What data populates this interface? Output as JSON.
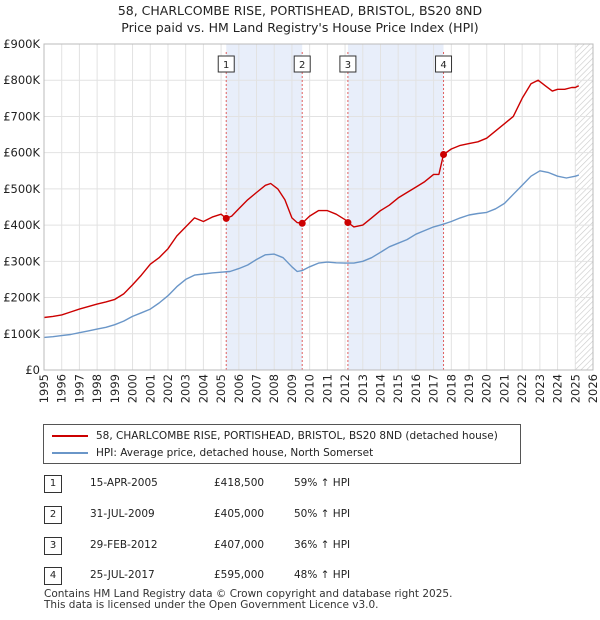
{
  "header": {
    "line1": "58, CHARLCOMBE RISE, PORTISHEAD, BRISTOL, BS20 8ND",
    "line2": "Price paid vs. HM Land Registry's House Price Index (HPI)"
  },
  "chart_data": {
    "type": "line",
    "title": "58, CHARLCOMBE RISE, PORTISHEAD, BRISTOL, BS20 8ND — Price paid vs. HM Land Registry's House Price Index (HPI)",
    "xlim": [
      1995,
      2026
    ],
    "ylim": [
      0,
      900000
    ],
    "x_ticks": [
      "1995",
      "1996",
      "1997",
      "1998",
      "1999",
      "2000",
      "2001",
      "2002",
      "2003",
      "2004",
      "2005",
      "2006",
      "2007",
      "2008",
      "2009",
      "2010",
      "2011",
      "2012",
      "2013",
      "2014",
      "2015",
      "2016",
      "2017",
      "2018",
      "2019",
      "2020",
      "2021",
      "2022",
      "2023",
      "2024",
      "2025",
      "2026"
    ],
    "y_ticks": [
      {
        "value": 0,
        "label": "£0"
      },
      {
        "value": 100000,
        "label": "£100K"
      },
      {
        "value": 200000,
        "label": "£200K"
      },
      {
        "value": 300000,
        "label": "£300K"
      },
      {
        "value": 400000,
        "label": "£400K"
      },
      {
        "value": 500000,
        "label": "£500K"
      },
      {
        "value": 600000,
        "label": "£600K"
      },
      {
        "value": 700000,
        "label": "£700K"
      },
      {
        "value": 800000,
        "label": "£800K"
      },
      {
        "value": 900000,
        "label": "£900K"
      }
    ],
    "shaded_periods": [
      [
        2005.29,
        2009.58
      ],
      [
        2012.16,
        2017.56
      ]
    ],
    "future_from": 2025.0,
    "series": [
      {
        "name": "58, CHARLCOMBE RISE, PORTISHEAD, BRISTOL, BS20 8ND (detached house)",
        "color": "#cc0000",
        "x": [
          1995.0,
          1995.5,
          1996.0,
          1996.5,
          1997.0,
          1997.5,
          1998.0,
          1998.5,
          1999.0,
          1999.5,
          2000.0,
          2000.5,
          2001.0,
          2001.5,
          2002.0,
          2002.5,
          2003.0,
          2003.5,
          2004.0,
          2004.5,
          2005.0,
          2005.29,
          2005.6,
          2006.0,
          2006.5,
          2007.0,
          2007.5,
          2007.8,
          2008.2,
          2008.6,
          2009.0,
          2009.3,
          2009.58,
          2010.0,
          2010.5,
          2011.0,
          2011.5,
          2012.0,
          2012.16,
          2012.5,
          2013.0,
          2013.5,
          2014.0,
          2014.5,
          2015.0,
          2015.5,
          2016.0,
          2016.5,
          2017.0,
          2017.3,
          2017.56,
          2018.0,
          2018.5,
          2019.0,
          2019.5,
          2020.0,
          2020.5,
          2021.0,
          2021.5,
          2022.0,
          2022.5,
          2022.9,
          2023.3,
          2023.7,
          2024.0,
          2024.4,
          2024.8,
          2025.0,
          2025.2
        ],
        "values": [
          145000,
          148000,
          152000,
          160000,
          168000,
          175000,
          182000,
          188000,
          195000,
          210000,
          235000,
          262000,
          292000,
          310000,
          335000,
          370000,
          395000,
          420000,
          410000,
          422000,
          430000,
          418500,
          425000,
          445000,
          470000,
          490000,
          510000,
          515000,
          500000,
          470000,
          420000,
          407000,
          405000,
          425000,
          440000,
          440000,
          430000,
          415000,
          407000,
          395000,
          400000,
          420000,
          440000,
          455000,
          475000,
          490000,
          505000,
          520000,
          540000,
          540000,
          595000,
          610000,
          620000,
          625000,
          630000,
          640000,
          660000,
          680000,
          700000,
          750000,
          790000,
          800000,
          785000,
          770000,
          775000,
          775000,
          780000,
          780000,
          785000
        ]
      },
      {
        "name": "HPI: Average price, detached house, North Somerset",
        "color": "#6a96c8",
        "x": [
          1995.0,
          1995.5,
          1996.0,
          1996.5,
          1997.0,
          1997.5,
          1998.0,
          1998.5,
          1999.0,
          1999.5,
          2000.0,
          2000.5,
          2001.0,
          2001.5,
          2002.0,
          2002.5,
          2003.0,
          2003.5,
          2004.0,
          2004.5,
          2005.0,
          2005.5,
          2006.0,
          2006.5,
          2007.0,
          2007.5,
          2008.0,
          2008.5,
          2009.0,
          2009.3,
          2009.6,
          2010.0,
          2010.5,
          2011.0,
          2011.5,
          2012.0,
          2012.5,
          2013.0,
          2013.5,
          2014.0,
          2014.5,
          2015.0,
          2015.5,
          2016.0,
          2016.5,
          2017.0,
          2017.5,
          2018.0,
          2018.5,
          2019.0,
          2019.5,
          2020.0,
          2020.5,
          2021.0,
          2021.5,
          2022.0,
          2022.5,
          2023.0,
          2023.5,
          2024.0,
          2024.5,
          2025.0,
          2025.2
        ],
        "values": [
          90000,
          92000,
          95000,
          98000,
          103000,
          108000,
          113000,
          118000,
          125000,
          135000,
          148000,
          158000,
          168000,
          185000,
          205000,
          230000,
          250000,
          262000,
          265000,
          268000,
          270000,
          272000,
          280000,
          290000,
          305000,
          318000,
          320000,
          310000,
          285000,
          272000,
          275000,
          285000,
          295000,
          298000,
          296000,
          295000,
          295000,
          300000,
          310000,
          325000,
          340000,
          350000,
          360000,
          375000,
          385000,
          395000,
          402000,
          410000,
          420000,
          428000,
          432000,
          435000,
          445000,
          460000,
          485000,
          510000,
          535000,
          550000,
          545000,
          535000,
          530000,
          535000,
          538000
        ]
      }
    ],
    "sales": [
      {
        "id": "1",
        "x": 2005.29,
        "value": 418500
      },
      {
        "id": "2",
        "x": 2009.58,
        "value": 405000
      },
      {
        "id": "3",
        "x": 2012.16,
        "value": 407000
      },
      {
        "id": "4",
        "x": 2017.56,
        "value": 595000
      }
    ]
  },
  "legend": {
    "items": [
      {
        "label": "58, CHARLCOMBE RISE, PORTISHEAD, BRISTOL, BS20 8ND (detached house)",
        "color": "#cc0000"
      },
      {
        "label": "HPI: Average price, detached house, North Somerset",
        "color": "#6a96c8"
      }
    ]
  },
  "transactions": [
    {
      "id": "1",
      "date": "15-APR-2005",
      "price": "£418,500",
      "hpi": "59% ↑ HPI"
    },
    {
      "id": "2",
      "date": "31-JUL-2009",
      "price": "£405,000",
      "hpi": "50% ↑ HPI"
    },
    {
      "id": "3",
      "date": "29-FEB-2012",
      "price": "£407,000",
      "hpi": "36% ↑ HPI"
    },
    {
      "id": "4",
      "date": "25-JUL-2017",
      "price": "£595,000",
      "hpi": "48% ↑ HPI"
    }
  ],
  "footer": {
    "line1": "Contains HM Land Registry data © Crown copyright and database right 2025.",
    "line2": "This data is licensed under the Open Government Licence v3.0."
  }
}
